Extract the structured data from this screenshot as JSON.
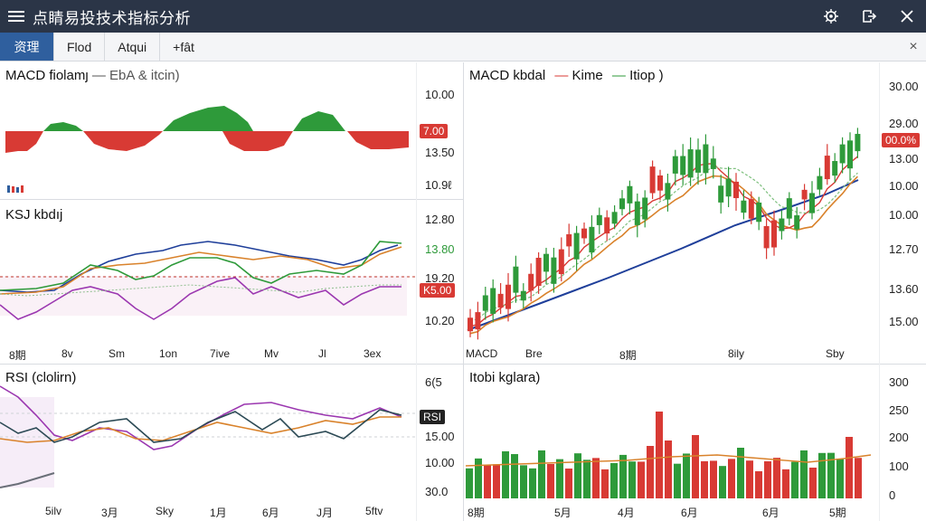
{
  "window": {
    "title": "点睛易投技术指标分析",
    "menu_icon": "hamburger-icon",
    "actions": [
      "settings-gear-icon",
      "export-icon",
      "close-icon"
    ]
  },
  "tabs": [
    {
      "label": "资理",
      "active": true
    },
    {
      "label": "Flod",
      "active": false
    },
    {
      "label": "Atqui",
      "active": false
    },
    {
      "label": "+fât",
      "active": false
    }
  ],
  "tabbar_close": "×",
  "panels": {
    "macd_left": {
      "title": "MACD fiolamȷ",
      "legend": "— EbA & itcin)",
      "ylabels": [
        "10.00",
        "13.50",
        "10.9ℓ"
      ],
      "badge": "7.00"
    },
    "ksj": {
      "title": "KSJ kbdıj",
      "ylabels": [
        "12.80",
        "13.80",
        "19.20",
        "10.20"
      ],
      "badge": "K5.00",
      "xlabels": [
        "8期",
        "8v",
        "Sm",
        "1on",
        "7ive",
        "Mv",
        "Jl",
        "3ex"
      ]
    },
    "rsi": {
      "title": "RSI (clolirn)",
      "ylabels": [
        "6(5",
        "15.00",
        "10.00",
        "30.0"
      ],
      "badge": "RSI",
      "xlabels": [
        "5ilv",
        "3月",
        "Sky",
        "1月",
        "6月",
        "J月",
        "5ftv"
      ]
    },
    "main": {
      "title": "MACD kbdal",
      "legend_kime": "Kime",
      "legend_itiop": "Itiop )",
      "ylabels": [
        "30.00",
        "29.00",
        "13.00",
        "10.00",
        "10.00",
        "12.70",
        "13.60",
        "15.00"
      ],
      "badge": "00.0%",
      "xlabels": [
        "MACD",
        "Bre",
        "8期",
        "8ily",
        "Sby"
      ]
    },
    "volume": {
      "title": "Itobi kglara)",
      "ylabels": [
        "300",
        "250",
        "200",
        "100",
        "0"
      ],
      "xlabels": [
        "8期",
        "5月",
        "4月",
        "6月",
        "6月",
        "5期"
      ]
    }
  },
  "colors": {
    "titlebar": "#2b3547",
    "accent_tab": "#2f5f9e",
    "up_green": "#2e9a3a",
    "down_red": "#d83a34",
    "ma_blue": "#1f3f9a",
    "ma_orange": "#d9822b",
    "ma_red": "#d83a34",
    "purple": "#9b37b0"
  }
}
